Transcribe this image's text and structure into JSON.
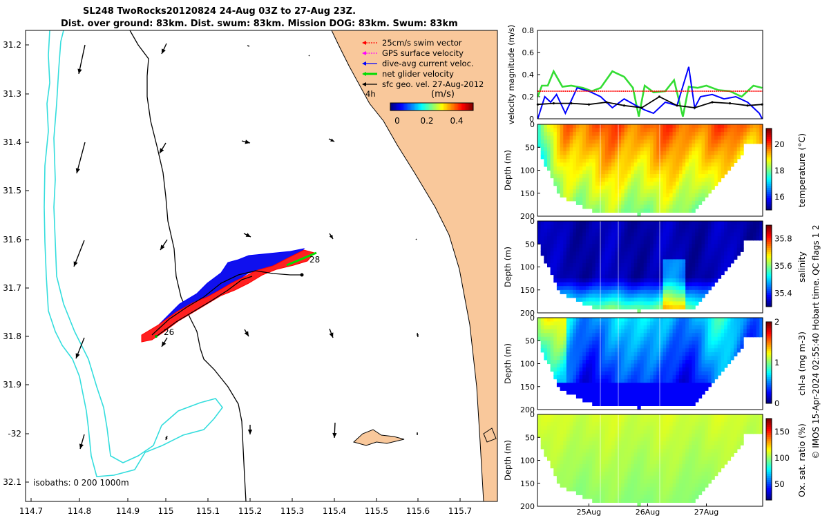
{
  "title": {
    "line1": "SL248 TwoRocks20120824 24-Aug 03Z to 27-Aug 23Z.",
    "line2": "Dist. over ground: 83km. Dist. swum: 83km. Mission DOG: 83km. Swum: 83km"
  },
  "colors": {
    "land": "#f9c89b",
    "isobath_200": "#000000",
    "isobath_1000": "#33dddd",
    "swim": "#ff0000",
    "gps": "#ff00ff",
    "dive_avg": "#0000ff",
    "net": "#00dd00",
    "geo": "#000000"
  },
  "map": {
    "lon_ticks": [
      "114.7",
      "114.8",
      "114.9",
      "115",
      "115.1",
      "115.2",
      "115.3",
      "115.4",
      "115.5",
      "115.6",
      "115.7"
    ],
    "lat_ticks": [
      "31.2",
      "31.3",
      "31.4",
      "31.5",
      "31.6",
      "31.7",
      "31.8",
      "31.9",
      "-32",
      "32.1"
    ],
    "legend": [
      {
        "label": "25cm/s swim vector",
        "color": "#ff0000",
        "style": "dotted"
      },
      {
        "label": "GPS surface velocity",
        "color": "#ff00ff",
        "style": "dotted"
      },
      {
        "label": "dive-avg current veloc.",
        "color": "#0000ff",
        "style": "solid"
      },
      {
        "label": "net glider velocity",
        "color": "#00dd00",
        "style": "thick"
      },
      {
        "label": "sfc geo. vel. 27-Aug-2012",
        "color": "#000000",
        "style": "solid"
      }
    ],
    "legend_4h": "4h",
    "colorbar_title": "(m/s)",
    "colorbar_ticks": [
      "0",
      "0.2",
      "0.4"
    ],
    "day_labels": [
      "26",
      "28"
    ],
    "isobath_note": "isobaths: 0   200  1000m"
  },
  "chart_data": [
    {
      "type": "line",
      "title": "",
      "xlabel": "",
      "ylabel": "velocity magnitude (m/s)",
      "ylim": [
        0,
        0.8
      ],
      "yticks": [
        "0",
        "0.2",
        "0.4",
        "0.6",
        "0.8"
      ],
      "x_range_days": [
        24.125,
        27.958
      ],
      "series": [
        {
          "name": "net glider velocity",
          "color": "#33dd33",
          "x": [
            24.13,
            24.2,
            24.3,
            24.4,
            24.55,
            24.7,
            24.9,
            25.05,
            25.2,
            25.4,
            25.6,
            25.75,
            25.85,
            25.95,
            26.1,
            26.3,
            26.45,
            26.6,
            26.7,
            26.85,
            27.0,
            27.2,
            27.4,
            27.6,
            27.8,
            27.95
          ],
          "y": [
            0.2,
            0.3,
            0.3,
            0.43,
            0.29,
            0.3,
            0.28,
            0.25,
            0.28,
            0.43,
            0.38,
            0.28,
            0.02,
            0.3,
            0.24,
            0.25,
            0.35,
            0.02,
            0.29,
            0.28,
            0.3,
            0.26,
            0.25,
            0.2,
            0.3,
            0.28
          ]
        },
        {
          "name": "dive-avg current veloc.",
          "color": "#0000ff",
          "x": [
            24.13,
            24.25,
            24.35,
            24.45,
            24.6,
            24.8,
            25.0,
            25.2,
            25.4,
            25.6,
            25.8,
            25.95,
            26.1,
            26.3,
            26.5,
            26.7,
            26.8,
            26.9,
            27.1,
            27.3,
            27.5,
            27.7,
            27.9,
            27.95
          ],
          "y": [
            0.0,
            0.2,
            0.15,
            0.22,
            0.05,
            0.28,
            0.25,
            0.2,
            0.1,
            0.18,
            0.12,
            0.08,
            0.05,
            0.15,
            0.12,
            0.47,
            0.1,
            0.2,
            0.22,
            0.18,
            0.2,
            0.15,
            0.05,
            0.0
          ]
        },
        {
          "name": "sfc geo. vel.",
          "color": "#000000",
          "x": [
            24.13,
            24.4,
            24.7,
            25.0,
            25.3,
            25.6,
            25.9,
            26.2,
            26.5,
            26.8,
            27.1,
            27.4,
            27.7,
            27.95
          ],
          "y": [
            0.13,
            0.14,
            0.14,
            0.13,
            0.15,
            0.12,
            0.1,
            0.2,
            0.12,
            0.1,
            0.15,
            0.14,
            0.12,
            0.13
          ]
        },
        {
          "name": "25cm/s swim vector",
          "color": "#ff0000",
          "x": [
            24.13,
            27.95
          ],
          "y": [
            0.25,
            0.25
          ]
        }
      ]
    },
    {
      "type": "heatmap",
      "ylabel": "Depth (m)",
      "colorbar_label": "temperature (°C)",
      "ylim": [
        200,
        0
      ],
      "yticks": [
        "0",
        "50",
        "100",
        "150",
        "200"
      ],
      "colorbar_ticks": [
        "16",
        "18",
        "20"
      ],
      "colorbar_range": [
        15,
        21.2
      ]
    },
    {
      "type": "heatmap",
      "ylabel": "Depth (m)",
      "colorbar_label": "salinity",
      "ylim": [
        200,
        0
      ],
      "yticks": [
        "0",
        "50",
        "100",
        "150",
        "200"
      ],
      "colorbar_ticks": [
        "35.4",
        "35.6",
        "35.8"
      ],
      "colorbar_range": [
        35.3,
        35.9
      ]
    },
    {
      "type": "heatmap",
      "ylabel": "Depth (m)",
      "colorbar_label": "chl-a (mg m-3)",
      "ylim": [
        200,
        0
      ],
      "yticks": [
        "0",
        "50",
        "100",
        "150",
        "200"
      ],
      "colorbar_ticks": [
        "0",
        "1",
        "2"
      ],
      "colorbar_range": [
        0,
        2
      ]
    },
    {
      "type": "heatmap",
      "ylabel": "Depth (m)",
      "colorbar_label": "Ox. sat. ratio (%)",
      "ylim": [
        200,
        0
      ],
      "yticks": [
        "0",
        "50",
        "100",
        "150",
        "200"
      ],
      "colorbar_ticks": [
        "50",
        "100",
        "150"
      ],
      "colorbar_range": [
        20,
        175
      ],
      "xticks": [
        "25Aug",
        "26Aug",
        "27Aug"
      ]
    }
  ],
  "side_note": "© IMOS 15-Apr-2024 02:55:40 Hobart time. QC flags 1  2"
}
